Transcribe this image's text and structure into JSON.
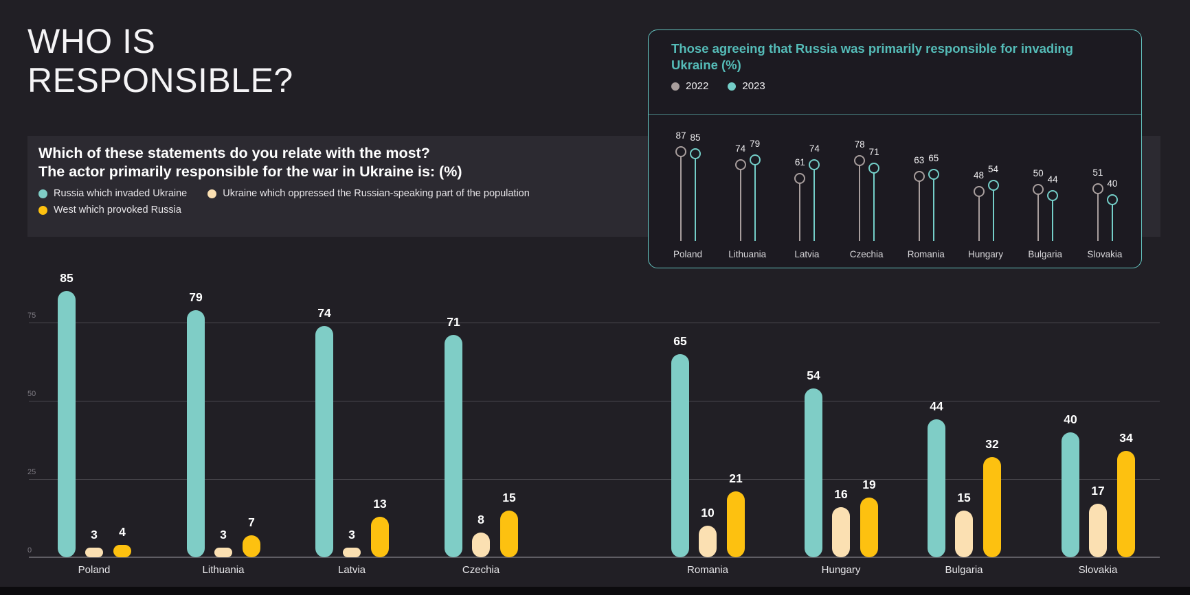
{
  "page": {
    "title": "WHO IS RESPONSIBLE?",
    "background_color": "#211f25"
  },
  "question_panel": {
    "title_line1": "Which of these statements do you relate with the most?",
    "title_line2": "The actor primarily responsible for the war in Ukraine is: (%)",
    "legend": [
      {
        "label": "Russia which invaded Ukraine",
        "color": "#7fcdc6"
      },
      {
        "label": "Ukraine which oppressed the Russian-speaking part of the population",
        "color": "#fbe0b2"
      },
      {
        "label": "West which provoked Russia",
        "color": "#fdc110"
      }
    ]
  },
  "inset_panel": {
    "title": "Those agreeing that Russia was primarily responsible for invading Ukraine (%)",
    "border_color": "#64c4c0",
    "title_color": "#55bcb8",
    "legend": [
      {
        "label": "2022",
        "color": "#a89e9d"
      },
      {
        "label": "2023",
        "color": "#74cec8"
      }
    ]
  },
  "chart_data": [
    {
      "id": "main_grouped_bar",
      "type": "bar",
      "title": "The actor primarily responsible for the war in Ukraine is: (%)",
      "categories": [
        "Poland",
        "Lithuania",
        "Latvia",
        "Czechia",
        "Romania",
        "Hungary",
        "Bulgaria",
        "Slovakia"
      ],
      "series": [
        {
          "name": "Russia which invaded Ukraine",
          "color": "#7fcdc6",
          "values": [
            85,
            79,
            74,
            71,
            65,
            54,
            44,
            40
          ]
        },
        {
          "name": "Ukraine which oppressed the Russian-speaking part of the population",
          "color": "#fbe0b2",
          "values": [
            3,
            3,
            3,
            8,
            10,
            16,
            15,
            17
          ]
        },
        {
          "name": "West which provoked Russia",
          "color": "#fdc110",
          "values": [
            4,
            7,
            13,
            15,
            21,
            19,
            32,
            34
          ]
        }
      ],
      "xlabel": "",
      "ylabel": "",
      "yticks": [
        0,
        25,
        50,
        75
      ],
      "ylim": [
        0,
        100
      ],
      "grid": true,
      "value_labels": true,
      "legend_position": "top-left"
    },
    {
      "id": "inset_lollipop",
      "type": "lollipop",
      "title": "Those agreeing that Russia was primarily responsible for invading Ukraine (%)",
      "categories": [
        "Poland",
        "Lithuania",
        "Latvia",
        "Czechia",
        "Romania",
        "Hungary",
        "Bulgaria",
        "Slovakia"
      ],
      "series": [
        {
          "name": "2022",
          "color": "#a89e9d",
          "values": [
            87,
            74,
            61,
            78,
            63,
            48,
            50,
            51
          ]
        },
        {
          "name": "2023",
          "color": "#74cec8",
          "values": [
            85,
            79,
            74,
            71,
            65,
            54,
            44,
            40
          ]
        }
      ],
      "ylim": [
        0,
        100
      ],
      "grid": false,
      "value_labels": true,
      "legend_position": "top-left"
    }
  ]
}
